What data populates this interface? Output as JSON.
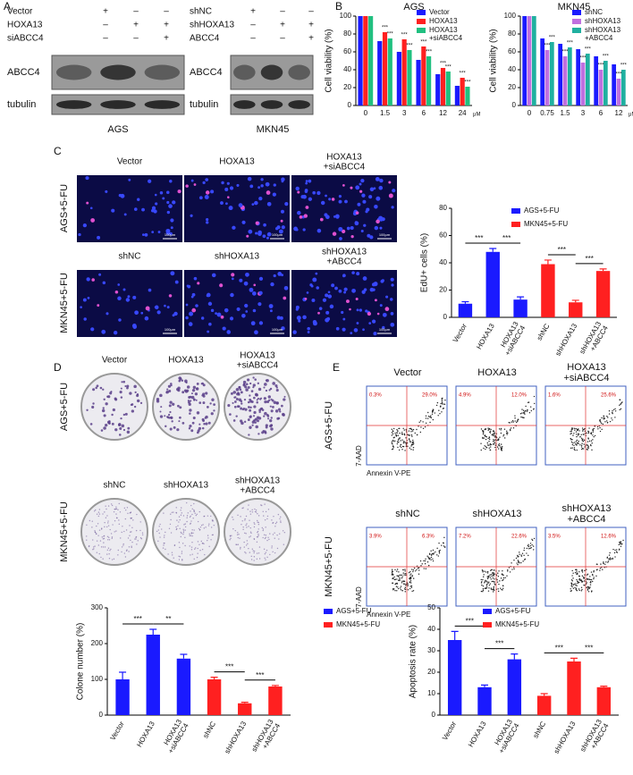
{
  "panel_labels": [
    "A",
    "B",
    "C",
    "D",
    "E"
  ],
  "blot": [
    {
      "rows": [
        {
          "label": "Vector",
          "signs": [
            "+",
            "–",
            "–"
          ]
        },
        {
          "label": "HOXA13",
          "signs": [
            "–",
            "+",
            "+"
          ]
        },
        {
          "label": "siABCC4",
          "signs": [
            "–",
            "–",
            "+"
          ]
        }
      ],
      "bands": [
        "ABCC4",
        "tubulin"
      ],
      "cell_line": "AGS"
    },
    {
      "rows": [
        {
          "label": "shNC",
          "signs": [
            "+",
            "–",
            "–"
          ]
        },
        {
          "label": "shHOXA13",
          "signs": [
            "–",
            "+",
            "+"
          ]
        },
        {
          "label": "ABCC4",
          "signs": [
            "–",
            "–",
            "+"
          ]
        }
      ],
      "bands": [
        "ABCC4",
        "tubulin"
      ],
      "cell_line": "MKN45"
    }
  ],
  "micrograph": {
    "rows": [
      {
        "label": "AGS+5-FU",
        "columns": [
          "Vector",
          "HOXA13",
          "HOXA13\n+siABCC4"
        ]
      },
      {
        "label": "MKN45+5-FU",
        "columns": [
          "shNC",
          "shHOXA13",
          "shHOXA13\n+ABCC4"
        ]
      }
    ],
    "scale_bar": "100μm"
  },
  "colony": {
    "rows": [
      {
        "label": "AGS+5-FU",
        "columns": [
          "Vector",
          "HOXA13",
          "HOXA13\n+siABCC4"
        ]
      },
      {
        "label": "MKN45+5-FU",
        "columns": [
          "shNC",
          "shHOXA13",
          "shHOXA13\n+ABCC4"
        ]
      }
    ]
  },
  "flow": {
    "rows": [
      {
        "label": "AGS+5-FU",
        "columns": [
          "Vector",
          "HOXA13",
          "HOXA13\n+siABCC4"
        ],
        "ul": [
          "0.3%",
          "4.9%",
          "1.6%"
        ],
        "ur": [
          "29.0%",
          "12.0%",
          "25.6%"
        ]
      },
      {
        "label": "MKN45+5-FU",
        "columns": [
          "shNC",
          "shHOXA13",
          "shHOXA13\n+ABCC4"
        ],
        "ul": [
          "3.9%",
          "7.2%",
          "3.5%"
        ],
        "ur": [
          "6.3%",
          "22.6%",
          "12.6%"
        ]
      }
    ],
    "y_label": "7-AAD",
    "x_label": "Annexin V-PE"
  },
  "chart_data": [
    {
      "type": "bar",
      "title": "AGS",
      "x_unit": "μM",
      "y_label": "Cell viability (%)",
      "categories": [
        "0",
        "1.5",
        "3",
        "6",
        "12",
        "24"
      ],
      "series": [
        {
          "name": "Vector",
          "color": "#1a1aff",
          "values": [
            100,
            72,
            60,
            51,
            35,
            22
          ]
        },
        {
          "name": "HOXA13",
          "color": "#ff2020",
          "values": [
            100,
            82,
            74,
            66,
            42,
            31
          ]
        },
        {
          "name": "HOXA13\n+siABCC4",
          "color": "#20c080",
          "values": [
            100,
            75,
            62,
            55,
            38,
            21
          ]
        }
      ],
      "ylim": [
        0,
        100
      ],
      "yticks": [
        0,
        20,
        40,
        60,
        80,
        100
      ],
      "annotations": [
        {
          "text": "***",
          "category": 1,
          "series": 1
        },
        {
          "text": "***",
          "category": 1,
          "series": 2
        },
        {
          "text": "***",
          "category": 2,
          "series": 1
        },
        {
          "text": "***",
          "category": 2,
          "series": 2
        },
        {
          "text": "***",
          "category": 3,
          "series": 1
        },
        {
          "text": "***",
          "category": 3,
          "series": 2
        },
        {
          "text": "***",
          "category": 4,
          "series": 1
        },
        {
          "text": "***",
          "category": 4,
          "series": 2
        },
        {
          "text": "***",
          "category": 5,
          "series": 1
        },
        {
          "text": "***",
          "category": 5,
          "series": 2
        }
      ]
    },
    {
      "type": "bar",
      "title": "MKN45",
      "x_unit": "μM",
      "y_label": "Cell viability (%)",
      "categories": [
        "0",
        "0.75",
        "1.5",
        "3",
        "6",
        "12"
      ],
      "series": [
        {
          "name": "shNC",
          "color": "#1a1aff",
          "values": [
            100,
            75,
            69,
            63,
            55,
            46
          ]
        },
        {
          "name": "shHOXA13",
          "color": "#c070e0",
          "values": [
            100,
            62,
            55,
            48,
            40,
            30
          ]
        },
        {
          "name": "shHOXA13\n+ABCC4",
          "color": "#20b0a0",
          "values": [
            100,
            71,
            65,
            58,
            50,
            40
          ]
        }
      ],
      "ylim": [
        0,
        100
      ],
      "yticks": [
        0,
        20,
        40,
        60,
        80,
        100
      ],
      "annotations": [
        {
          "text": "***",
          "category": 1,
          "series": 1
        },
        {
          "text": "***",
          "category": 1,
          "series": 2
        },
        {
          "text": "***",
          "category": 2,
          "series": 1
        },
        {
          "text": "***",
          "category": 2,
          "series": 2
        },
        {
          "text": "***",
          "category": 3,
          "series": 1
        },
        {
          "text": "***",
          "category": 3,
          "series": 2
        },
        {
          "text": "***",
          "category": 4,
          "series": 1
        },
        {
          "text": "***",
          "category": 4,
          "series": 2
        },
        {
          "text": "***",
          "category": 5,
          "series": 1
        },
        {
          "text": "***",
          "category": 5,
          "series": 2
        }
      ]
    },
    {
      "type": "bar",
      "y_label": "EdU+ cells (%)",
      "categories": [
        "Vector",
        "HOXA13",
        "HOXA13\n+siABCC4",
        "shNC",
        "shHOXA13",
        "shHOXA13\n+ABCC4"
      ],
      "series": [
        {
          "name": "AGS+5-FU",
          "color": "#1a1aff",
          "values": [
            10,
            48,
            13,
            null,
            null,
            null
          ],
          "errors": [
            1.5,
            2.5,
            2,
            null,
            null,
            null
          ]
        },
        {
          "name": "MKN45+5-FU",
          "color": "#ff2020",
          "values": [
            null,
            null,
            null,
            39,
            11,
            34
          ],
          "errors": [
            null,
            null,
            null,
            3,
            1.5,
            1.5
          ]
        }
      ],
      "ylim": [
        0,
        80
      ],
      "yticks": [
        0,
        20,
        40,
        60,
        80
      ],
      "annotations": [
        {
          "text": "***",
          "from": 0,
          "to": 1
        },
        {
          "text": "***",
          "from": 1,
          "to": 2
        },
        {
          "text": "***",
          "from": 3,
          "to": 4
        },
        {
          "text": "***",
          "from": 4,
          "to": 5
        }
      ]
    },
    {
      "type": "bar",
      "y_label": "Colone number (%)",
      "categories": [
        "Vector",
        "HOXA13",
        "HOXA13\n+siABCC4",
        "shNC",
        "shHOXA13",
        "shHOXA13\n+ABCC4"
      ],
      "series": [
        {
          "name": "AGS+5-FU",
          "color": "#1a1aff",
          "values": [
            100,
            225,
            158,
            null,
            null,
            null
          ],
          "errors": [
            20,
            15,
            12,
            null,
            null,
            null
          ]
        },
        {
          "name": "MKN45+5-FU",
          "color": "#ff2020",
          "values": [
            null,
            null,
            null,
            100,
            33,
            80
          ],
          "errors": [
            null,
            null,
            null,
            6,
            3,
            3
          ]
        }
      ],
      "ylim": [
        0,
        300
      ],
      "yticks": [
        0,
        100,
        200,
        300
      ],
      "annotations": [
        {
          "text": "***",
          "from": 0,
          "to": 1
        },
        {
          "text": "**",
          "from": 1,
          "to": 2
        },
        {
          "text": "***",
          "from": 3,
          "to": 4
        },
        {
          "text": "***",
          "from": 4,
          "to": 5
        }
      ]
    },
    {
      "type": "bar",
      "y_label": "Apoptosis rate (%)",
      "categories": [
        "Vector",
        "HOXA13",
        "HOXA13\n+siABCC4",
        "shNC",
        "shHOXA13",
        "shHOXA13\n+ABCC4"
      ],
      "series": [
        {
          "name": "AGS+5-FU",
          "color": "#1a1aff",
          "values": [
            35,
            13,
            26,
            null,
            null,
            null
          ],
          "errors": [
            4,
            1,
            2.5,
            null,
            null,
            null
          ]
        },
        {
          "name": "MKN45+5-FU",
          "color": "#ff2020",
          "values": [
            null,
            null,
            null,
            9,
            25,
            13
          ],
          "errors": [
            null,
            null,
            null,
            1,
            1.5,
            0.5
          ]
        }
      ],
      "ylim": [
        0,
        50
      ],
      "yticks": [
        0,
        10,
        20,
        30,
        40,
        50
      ],
      "annotations": [
        {
          "text": "***",
          "from": 0,
          "to": 1
        },
        {
          "text": "***",
          "from": 1,
          "to": 2
        },
        {
          "text": "***",
          "from": 3,
          "to": 4
        },
        {
          "text": "***",
          "from": 4,
          "to": 5
        }
      ]
    }
  ]
}
